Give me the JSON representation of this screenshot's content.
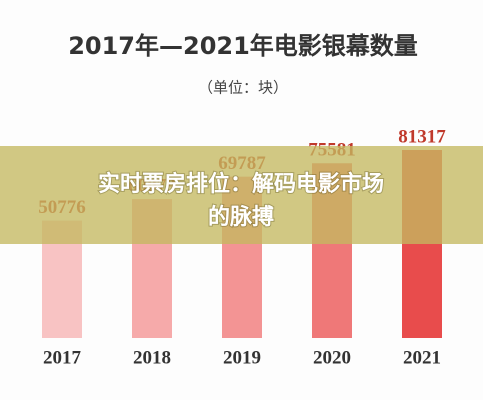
{
  "chart_data": {
    "type": "bar",
    "title": "2017年—2021年电影银幕数量",
    "subtitle": "（单位：块）",
    "categories": [
      "2017",
      "2018",
      "2019",
      "2020",
      "2021"
    ],
    "values": [
      50776,
      60079,
      69787,
      75581,
      81317
    ],
    "colors": [
      "#f8c3c3",
      "#f6aaaa",
      "#f39494",
      "#ef7878",
      "#e84c4c"
    ],
    "value_label_color": "#c0392b"
  },
  "banner": {
    "text": "实时票房排位：解码电影市场的脉搏"
  }
}
